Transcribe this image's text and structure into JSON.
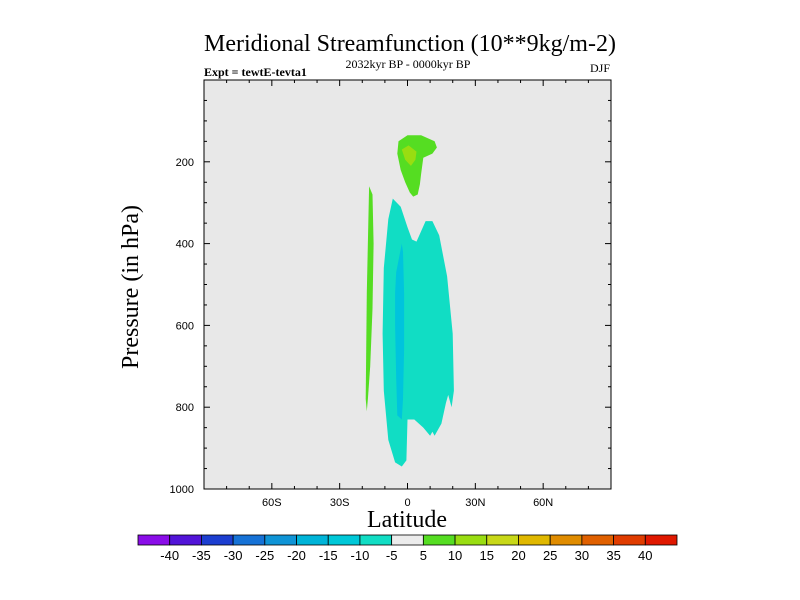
{
  "chart_data": {
    "type": "contour",
    "title": "Meridional Streamfunction (10**9kg/m-2)",
    "subtitle_left": "Expt = tewtE-tevta1",
    "subtitle_center": "2032kyr BP - 0000kyr BP",
    "subtitle_right": "DJF",
    "xlabel": "Latitude",
    "ylabel": "Pressure (in hPa)",
    "xlim": [
      -90,
      90
    ],
    "ylim": [
      1000,
      0
    ],
    "x_ticks": [
      {
        "value": -60,
        "label": "60S"
      },
      {
        "value": -30,
        "label": "30S"
      },
      {
        "value": 0,
        "label": "0"
      },
      {
        "value": 30,
        "label": "30N"
      },
      {
        "value": 60,
        "label": "60N"
      }
    ],
    "y_ticks": [
      {
        "value": 200,
        "label": "200"
      },
      {
        "value": 400,
        "label": "400"
      },
      {
        "value": 600,
        "label": "600"
      },
      {
        "value": 800,
        "label": "800"
      },
      {
        "value": 1000,
        "label": "1000"
      }
    ],
    "background_color": "#e8e8e8",
    "contour_regions": [
      {
        "name": "positive-cell-left",
        "level": "5 to 10",
        "color": "#55dd22",
        "lat": [
          -17.0,
          -15.5,
          -15.0,
          -15.5,
          -16.5,
          -17.5,
          -18.0,
          -18.5,
          -18.0
        ],
        "p": [
          260,
          280,
          400,
          560,
          700,
          780,
          810,
          780,
          520
        ]
      },
      {
        "name": "positive-cell-upper",
        "level": "5 to 10",
        "color": "#55dd22",
        "lat": [
          -4.0,
          0.0,
          6.0,
          12.0,
          13.0,
          11.0,
          7.0,
          6.0,
          5.5,
          4.5,
          2.5,
          1.0,
          -1.0,
          -3.0,
          -4.5
        ],
        "p": [
          150,
          135,
          135,
          150,
          165,
          180,
          190,
          230,
          255,
          280,
          285,
          275,
          250,
          220,
          180
        ]
      },
      {
        "name": "positive-cell-upper-core",
        "level": "10 to 15",
        "color": "#99dd11",
        "lat": [
          -2.5,
          0.5,
          4.0,
          3.5,
          1.5,
          -1.0
        ],
        "p": [
          170,
          160,
          175,
          195,
          210,
          195
        ]
      },
      {
        "name": "negative-cell-main",
        "level": "-10 to -5",
        "color": "#11ddc4",
        "lat": [
          -6.5,
          -3.0,
          0.0,
          2.0,
          4.0,
          6.0,
          8.0,
          11.0,
          14.0,
          17.5,
          20.0,
          20.5,
          19.5,
          18.0,
          17.0,
          15.0,
          12.0,
          11.0,
          10.0,
          7.0,
          3.0,
          0.0,
          -0.5,
          -2.5,
          -5.5,
          -8.5,
          -10.5,
          -11.0,
          -10.5,
          -8.5
        ],
        "p": [
          290,
          310,
          360,
          390,
          395,
          370,
          345,
          345,
          380,
          480,
          620,
          760,
          800,
          770,
          790,
          840,
          870,
          860,
          870,
          850,
          830,
          830,
          930,
          945,
          935,
          880,
          760,
          620,
          460,
          340
        ]
      },
      {
        "name": "negative-cell-core",
        "level": "-15 to -10",
        "color": "#00c4dd",
        "lat": [
          -5.0,
          -2.5,
          -2.0,
          -1.5,
          -1.5,
          -2.0,
          -2.5,
          -4.5,
          -5.0,
          -5.5,
          -5.5
        ],
        "p": [
          470,
          400,
          420,
          520,
          660,
          780,
          830,
          820,
          730,
          600,
          520
        ]
      }
    ],
    "colorbar": {
      "labels": [
        "-40",
        "-35",
        "-30",
        "-25",
        "-20",
        "-15",
        "-10",
        "-5",
        "5",
        "10",
        "15",
        "20",
        "25",
        "30",
        "35",
        "40"
      ],
      "colors": [
        "#8a0de8",
        "#5214d8",
        "#1c3ed0",
        "#1672d6",
        "#0f94d6",
        "#00b4d8",
        "#00c8d8",
        "#11ddc4",
        "#ececec",
        "#55dd22",
        "#99dd11",
        "#c8d818",
        "#e0b800",
        "#e08c00",
        "#e06000",
        "#e03c00",
        "#e01800"
      ]
    }
  }
}
